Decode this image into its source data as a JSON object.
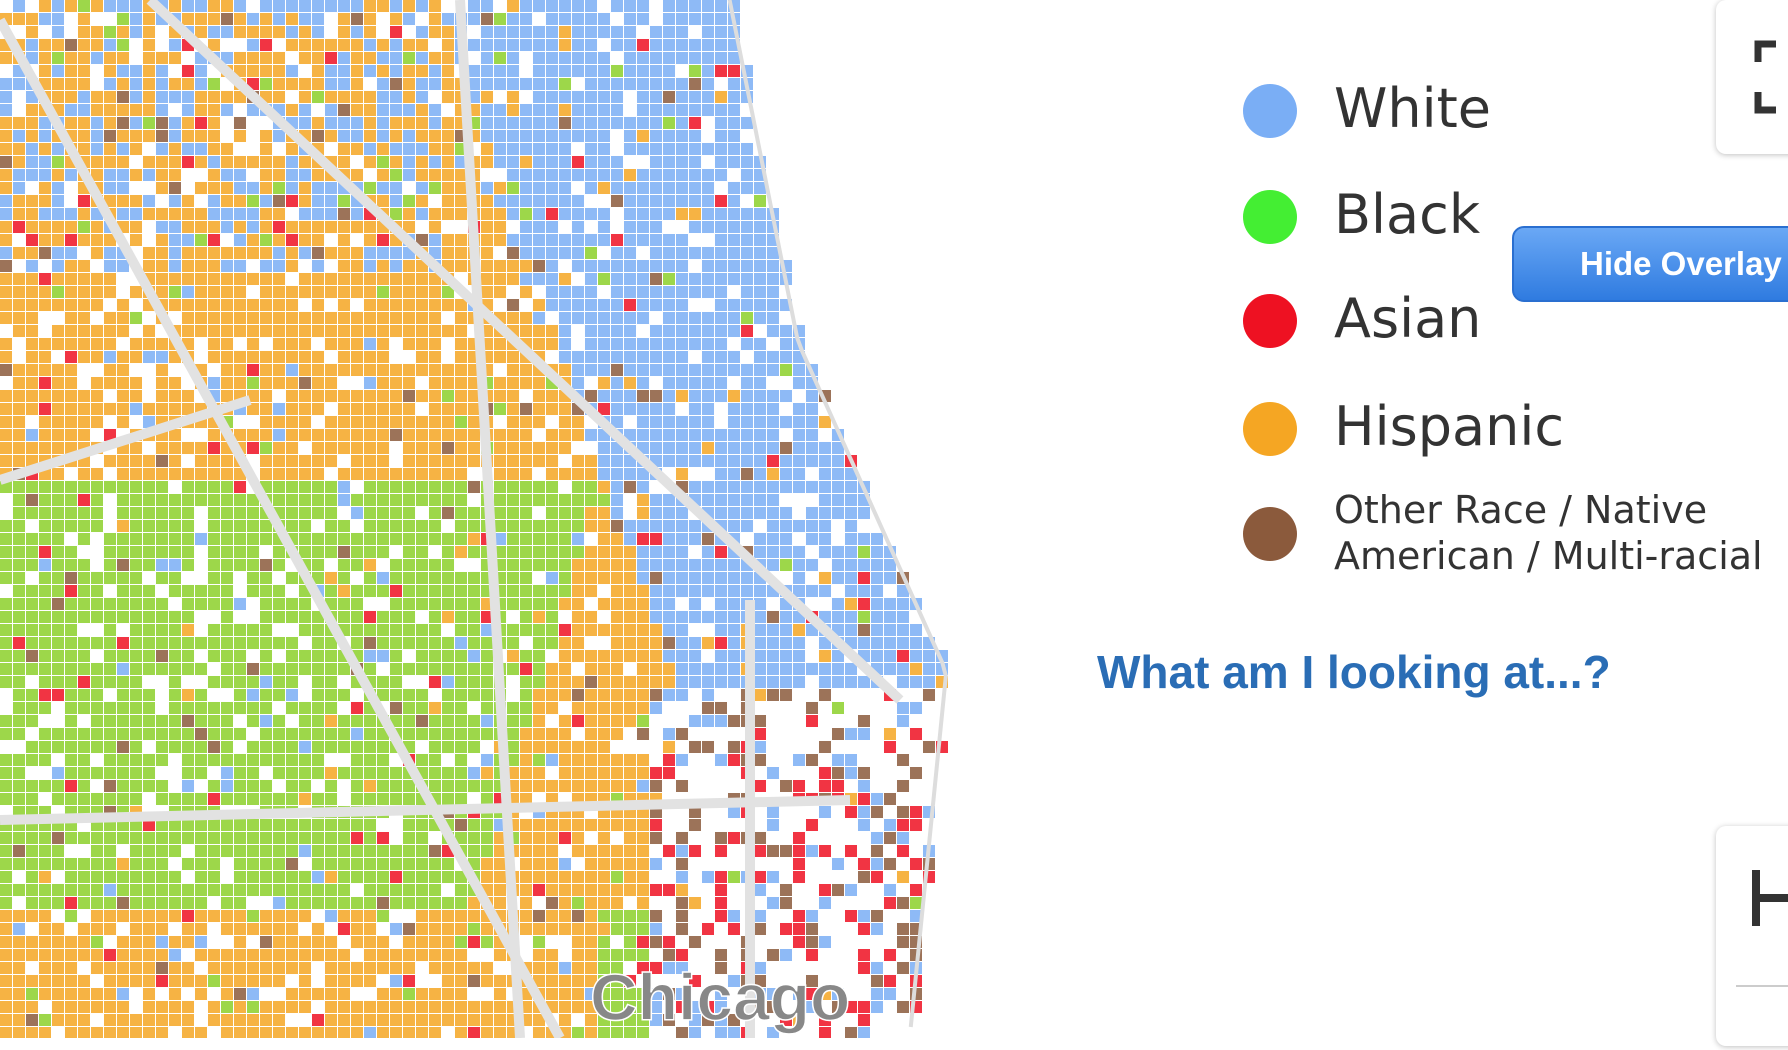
{
  "legend": {
    "items": [
      {
        "label": "White",
        "color": "#7aaef5"
      },
      {
        "label": "Black",
        "color": "#44ee33"
      },
      {
        "label": "Asian",
        "color": "#ee1122"
      },
      {
        "label": "Hispanic",
        "color": "#f5a623"
      },
      {
        "label": [
          "Other Race / Native",
          "American / Multi-racial"
        ],
        "color": "#8b5a3c"
      }
    ]
  },
  "map": {
    "place_label": "Chicago"
  },
  "help_link": "What am I looking at...?",
  "overlay_button": "Hide Overlay"
}
